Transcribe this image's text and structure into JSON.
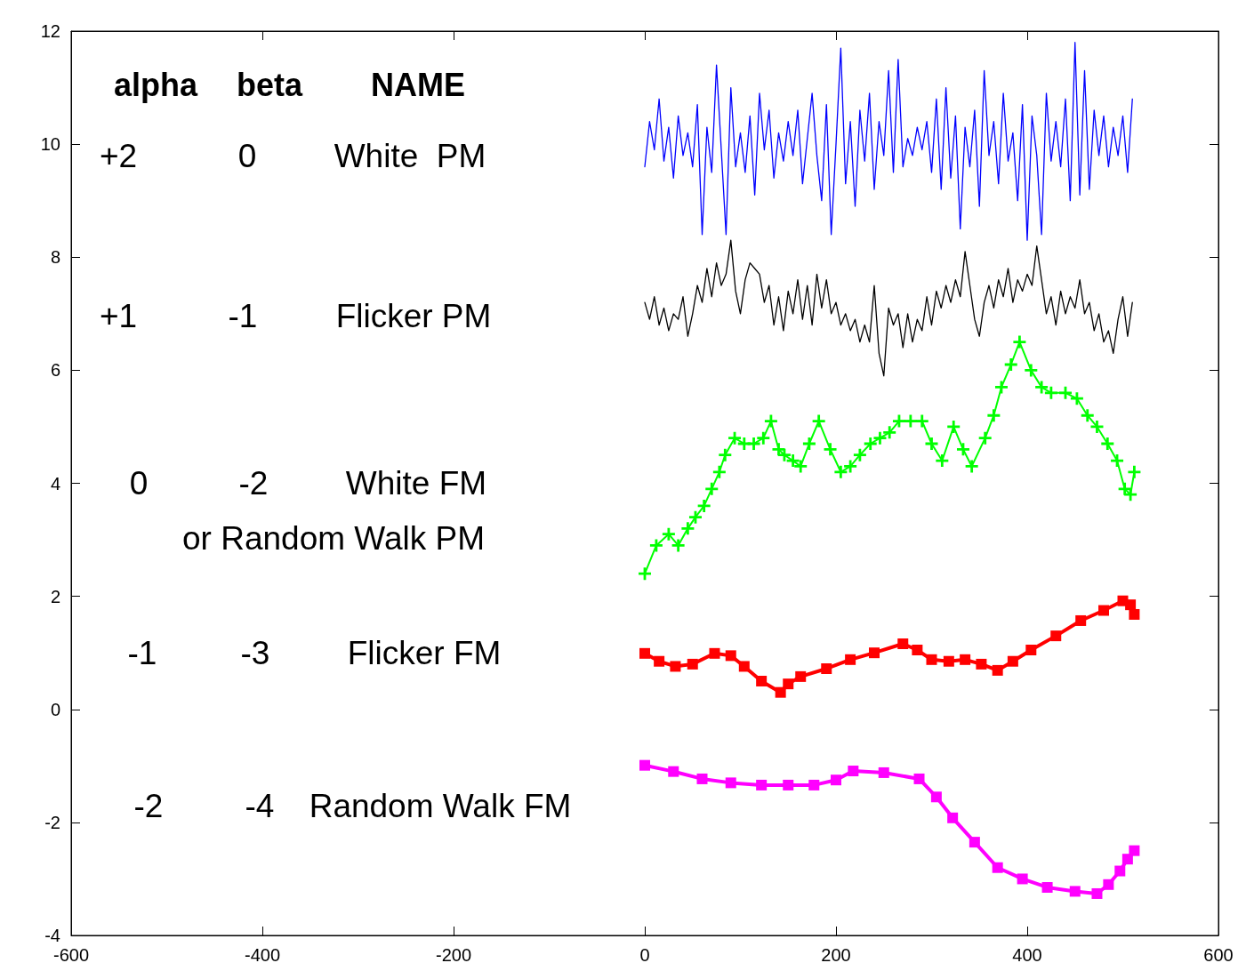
{
  "chart_data": {
    "type": "line",
    "xlim": [
      -600,
      600
    ],
    "xticks": [
      -600,
      -400,
      -200,
      0,
      200,
      400,
      600
    ],
    "ylim": [
      -4,
      12
    ],
    "yticks": [
      -4,
      -2,
      0,
      2,
      4,
      6,
      8,
      10,
      12
    ],
    "grid": false,
    "annotations": [
      "alpha",
      "beta",
      "NAME",
      "+2",
      "0",
      "White  PM",
      "+1",
      "-1",
      "Flicker PM",
      "0",
      "-2",
      "White FM",
      "or Random Walk PM",
      "-1",
      "-3",
      "Flicker FM",
      "-2",
      "-4",
      "Random Walk FM"
    ],
    "series": [
      {
        "color": "#0000ff",
        "marker": "none",
        "x": [
          0,
          5,
          10,
          15,
          20,
          25,
          30,
          35,
          40,
          45,
          50,
          55,
          60,
          65,
          70,
          75,
          80,
          85,
          90,
          95,
          100,
          105,
          110,
          115,
          120,
          125,
          130,
          135,
          140,
          145,
          150,
          155,
          160,
          165,
          170,
          175,
          180,
          185,
          190,
          195,
          200,
          205,
          210,
          215,
          220,
          225,
          230,
          235,
          240,
          245,
          250,
          255,
          260,
          265,
          270,
          275,
          280,
          285,
          290,
          295,
          300,
          305,
          310,
          315,
          320,
          325,
          330,
          335,
          340,
          345,
          350,
          355,
          360,
          365,
          370,
          375,
          380,
          385,
          390,
          395,
          400,
          405,
          410,
          415,
          420,
          425,
          430,
          435,
          440,
          445,
          450,
          455,
          460,
          465,
          470,
          475,
          480,
          485,
          490,
          495,
          500,
          505,
          510
        ],
        "values": [
          9.6,
          10.4,
          9.9,
          10.8,
          9.7,
          10.3,
          9.4,
          10.5,
          9.8,
          10.2,
          9.6,
          10.7,
          8.4,
          10.3,
          9.5,
          11.4,
          9.9,
          8.4,
          11.0,
          9.6,
          10.2,
          9.5,
          10.5,
          9.1,
          10.9,
          9.9,
          10.6,
          9.4,
          10.2,
          9.7,
          10.4,
          9.8,
          10.6,
          9.3,
          10.1,
          10.9,
          9.8,
          9.0,
          10.7,
          8.4,
          10.0,
          11.7,
          9.3,
          10.4,
          8.9,
          10.6,
          9.7,
          10.9,
          9.2,
          10.4,
          9.8,
          11.3,
          9.5,
          11.5,
          9.6,
          10.1,
          9.8,
          10.3,
          9.9,
          10.4,
          9.5,
          10.8,
          9.2,
          11.0,
          9.4,
          10.5,
          8.5,
          10.3,
          9.6,
          10.6,
          8.9,
          11.3,
          9.8,
          10.4,
          9.3,
          10.9,
          9.7,
          10.2,
          9.0,
          10.7,
          8.3,
          10.5,
          9.8,
          8.4,
          10.9,
          9.7,
          10.4,
          9.6,
          10.8,
          9.0,
          11.8,
          9.1,
          11.3,
          9.2,
          10.6,
          9.8,
          10.5,
          9.6,
          10.3,
          9.8,
          10.5,
          9.5,
          10.8
        ]
      },
      {
        "color": "#000000",
        "marker": "none",
        "x": [
          0,
          5,
          10,
          15,
          20,
          25,
          30,
          35,
          40,
          45,
          50,
          55,
          60,
          65,
          70,
          75,
          80,
          85,
          90,
          95,
          100,
          105,
          110,
          115,
          120,
          125,
          130,
          135,
          140,
          145,
          150,
          155,
          160,
          165,
          170,
          175,
          180,
          185,
          190,
          195,
          200,
          205,
          210,
          215,
          220,
          225,
          230,
          235,
          240,
          245,
          250,
          255,
          260,
          265,
          270,
          275,
          280,
          285,
          290,
          295,
          300,
          305,
          310,
          315,
          320,
          325,
          330,
          335,
          340,
          345,
          350,
          355,
          360,
          365,
          370,
          375,
          380,
          385,
          390,
          395,
          400,
          405,
          410,
          415,
          420,
          425,
          430,
          435,
          440,
          445,
          450,
          455,
          460,
          465,
          470,
          475,
          480,
          485,
          490,
          495,
          500,
          505,
          510
        ],
        "values": [
          7.2,
          6.9,
          7.3,
          6.8,
          7.1,
          6.7,
          7.0,
          6.9,
          7.3,
          6.6,
          7.0,
          7.5,
          7.2,
          7.8,
          7.3,
          7.9,
          7.5,
          7.7,
          8.3,
          7.4,
          7.0,
          7.6,
          7.9,
          7.8,
          7.7,
          7.2,
          7.5,
          6.8,
          7.3,
          6.7,
          7.4,
          7.0,
          7.6,
          6.9,
          7.5,
          6.8,
          7.7,
          7.1,
          7.6,
          7.0,
          7.2,
          6.8,
          7.0,
          6.7,
          6.9,
          6.5,
          6.8,
          6.5,
          7.5,
          6.3,
          5.9,
          7.1,
          6.8,
          7.0,
          6.4,
          7.0,
          6.5,
          6.9,
          6.7,
          7.3,
          6.8,
          7.4,
          7.1,
          7.5,
          7.2,
          7.6,
          7.3,
          8.1,
          7.5,
          6.9,
          6.6,
          7.2,
          7.5,
          7.1,
          7.6,
          7.3,
          7.8,
          7.2,
          7.6,
          7.4,
          7.7,
          7.5,
          8.2,
          7.6,
          7.0,
          7.3,
          6.8,
          7.4,
          7.0,
          7.3,
          7.1,
          7.6,
          7.0,
          7.2,
          6.7,
          7.0,
          6.5,
          6.7,
          6.3,
          6.9,
          7.3,
          6.6,
          7.2
        ]
      },
      {
        "color": "#00ff00",
        "marker": "cross",
        "x": [
          0,
          12,
          25,
          35,
          45,
          53,
          62,
          70,
          78,
          84,
          94,
          104,
          114,
          124,
          132,
          140,
          146,
          155,
          163,
          172,
          182,
          194,
          205,
          215,
          225,
          236,
          246,
          256,
          266,
          278,
          290,
          300,
          311,
          323,
          333,
          342,
          356,
          365,
          373,
          383,
          392,
          404,
          415,
          425,
          440,
          452,
          463,
          473,
          484,
          494,
          502,
          508,
          512
        ],
        "values": [
          2.4,
          2.9,
          3.1,
          2.9,
          3.2,
          3.4,
          3.6,
          3.9,
          4.2,
          4.5,
          4.8,
          4.7,
          4.7,
          4.8,
          5.1,
          4.6,
          4.5,
          4.4,
          4.3,
          4.7,
          5.1,
          4.6,
          4.2,
          4.3,
          4.5,
          4.7,
          4.8,
          4.9,
          5.1,
          5.1,
          5.1,
          4.7,
          4.4,
          5.0,
          4.6,
          4.3,
          4.8,
          5.2,
          5.7,
          6.1,
          6.5,
          6.0,
          5.7,
          5.6,
          5.6,
          5.5,
          5.2,
          5.0,
          4.7,
          4.4,
          3.9,
          3.8,
          4.2
        ]
      },
      {
        "color": "#ff0000",
        "marker": "square",
        "x": [
          0,
          15,
          32,
          50,
          73,
          90,
          104,
          122,
          142,
          150,
          163,
          190,
          215,
          240,
          270,
          285,
          300,
          318,
          335,
          352,
          369,
          385,
          404,
          430,
          456,
          480,
          500,
          508,
          512
        ],
        "values": [
          0.99,
          0.85,
          0.76,
          0.8,
          0.99,
          0.95,
          0.76,
          0.5,
          0.3,
          0.45,
          0.58,
          0.72,
          0.88,
          1.0,
          1.16,
          1.05,
          0.88,
          0.85,
          0.88,
          0.8,
          0.69,
          0.85,
          1.05,
          1.3,
          1.57,
          1.75,
          1.92,
          1.85,
          1.68
        ]
      },
      {
        "color": "#ff00ff",
        "marker": "square",
        "x": [
          0,
          30,
          60,
          90,
          122,
          150,
          177,
          200,
          218,
          250,
          287,
          305,
          322,
          345,
          369,
          395,
          421,
          450,
          473,
          485,
          497,
          505,
          512
        ],
        "values": [
          -0.99,
          -1.1,
          -1.23,
          -1.3,
          -1.34,
          -1.34,
          -1.34,
          -1.25,
          -1.09,
          -1.12,
          -1.23,
          -1.55,
          -1.92,
          -2.35,
          -2.8,
          -3.0,
          -3.15,
          -3.22,
          -3.26,
          -3.1,
          -2.86,
          -2.65,
          -2.5
        ]
      }
    ]
  }
}
